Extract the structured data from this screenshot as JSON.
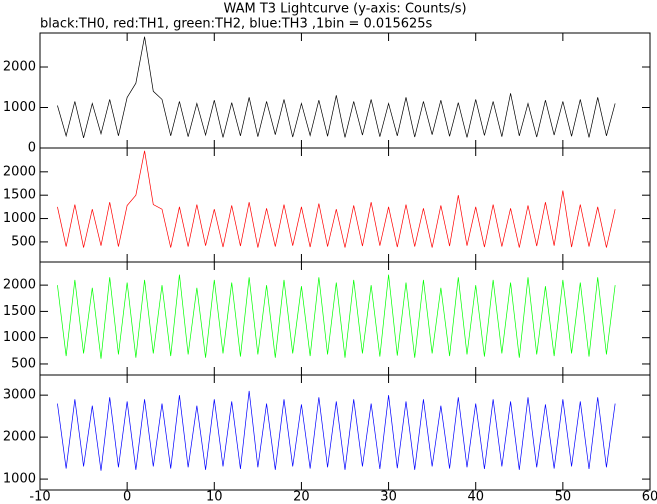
{
  "title": "WAM T3 Lightcurve (y-axis: Counts/s)",
  "subtitle": "black:TH0, red:TH1, green:TH2, blue:TH3 ,1bin = 0.015625s",
  "chart_data": [
    {
      "type": "line",
      "color": "#000000",
      "xlim": [
        -10,
        60
      ],
      "ylim": [
        0,
        2840
      ],
      "yticks": [
        0,
        1000,
        2000
      ],
      "x": [
        -8,
        -7,
        -6,
        -5,
        -4,
        -3,
        -2,
        -1,
        0,
        1,
        2,
        3,
        4,
        5,
        6,
        7,
        8,
        9,
        10,
        11,
        12,
        13,
        14,
        15,
        16,
        17,
        18,
        19,
        20,
        21,
        22,
        23,
        24,
        25,
        26,
        27,
        28,
        29,
        30,
        31,
        32,
        33,
        34,
        35,
        36,
        37,
        38,
        39,
        40,
        41,
        42,
        43,
        44,
        45,
        46,
        47,
        48,
        49,
        50,
        51,
        52,
        53,
        54,
        55,
        56
      ],
      "values": [
        1050,
        300,
        1150,
        250,
        1100,
        350,
        1200,
        300,
        1250,
        1600,
        2750,
        1400,
        1200,
        300,
        1150,
        280,
        1100,
        320,
        1180,
        260,
        1120,
        300,
        1250,
        280,
        1150,
        330,
        1200,
        270,
        1100,
        310,
        1180,
        290,
        1300,
        260,
        1150,
        320,
        1200,
        280,
        1100,
        300,
        1250,
        270,
        1150,
        330,
        1180,
        290,
        1120,
        260,
        1200,
        310,
        1150,
        280,
        1350,
        300,
        1100,
        270,
        1180,
        320,
        1150,
        290,
        1200,
        260,
        1250,
        300,
        1100
      ]
    },
    {
      "type": "line",
      "color": "#ff0000",
      "xlim": [
        -10,
        60
      ],
      "ylim": [
        70,
        2510
      ],
      "yticks": [
        500,
        1000,
        1500,
        2000
      ],
      "x": [
        -8,
        -7,
        -6,
        -5,
        -4,
        -3,
        -2,
        -1,
        0,
        1,
        2,
        3,
        4,
        5,
        6,
        7,
        8,
        9,
        10,
        11,
        12,
        13,
        14,
        15,
        16,
        17,
        18,
        19,
        20,
        21,
        22,
        23,
        24,
        25,
        26,
        27,
        28,
        29,
        30,
        31,
        32,
        33,
        34,
        35,
        36,
        37,
        38,
        39,
        40,
        41,
        42,
        43,
        44,
        45,
        46,
        47,
        48,
        49,
        50,
        51,
        52,
        53,
        54,
        55,
        56
      ],
      "values": [
        1250,
        400,
        1300,
        380,
        1200,
        420,
        1350,
        400,
        1280,
        1500,
        2450,
        1300,
        1200,
        380,
        1250,
        400,
        1300,
        420,
        1200,
        390,
        1280,
        410,
        1350,
        380,
        1220,
        400,
        1300,
        420,
        1250,
        390,
        1320,
        400,
        1200,
        380,
        1280,
        410,
        1350,
        420,
        1250,
        390,
        1300,
        400,
        1220,
        380,
        1280,
        410,
        1500,
        420,
        1250,
        390,
        1300,
        400,
        1220,
        380,
        1280,
        410,
        1350,
        420,
        1600,
        390,
        1300,
        400,
        1250,
        380,
        1200
      ]
    },
    {
      "type": "line",
      "color": "#00ff00",
      "xlim": [
        -10,
        60
      ],
      "ylim": [
        290,
        2440
      ],
      "yticks": [
        500,
        1000,
        1500,
        2000
      ],
      "x": [
        -8,
        -7,
        -6,
        -5,
        -4,
        -3,
        -2,
        -1,
        0,
        1,
        2,
        3,
        4,
        5,
        6,
        7,
        8,
        9,
        10,
        11,
        12,
        13,
        14,
        15,
        16,
        17,
        18,
        19,
        20,
        21,
        22,
        23,
        24,
        25,
        26,
        27,
        28,
        29,
        30,
        31,
        32,
        33,
        34,
        35,
        36,
        37,
        38,
        39,
        40,
        41,
        42,
        43,
        44,
        45,
        46,
        47,
        48,
        49,
        50,
        51,
        52,
        53,
        54,
        55,
        56
      ],
      "values": [
        2000,
        650,
        2100,
        700,
        1950,
        600,
        2150,
        680,
        2050,
        620,
        2100,
        700,
        2000,
        650,
        2200,
        680,
        1950,
        620,
        2100,
        700,
        2050,
        640,
        2150,
        680,
        2000,
        620,
        2100,
        700,
        1980,
        650,
        2150,
        680,
        2050,
        620,
        2100,
        700,
        2000,
        640,
        2200,
        660,
        2050,
        620,
        2100,
        700,
        1950,
        650,
        2150,
        680,
        2000,
        640,
        2100,
        700,
        2050,
        620,
        2150,
        680,
        1980,
        650,
        2100,
        700,
        2050,
        640,
        2150,
        680,
        2000
      ]
    },
    {
      "type": "line",
      "color": "#0000ff",
      "xlim": [
        -10,
        60
      ],
      "ylim": [
        740,
        3480
      ],
      "yticks": [
        1000,
        2000,
        3000
      ],
      "xticks": [
        -10,
        0,
        10,
        20,
        30,
        40,
        50,
        60
      ],
      "x": [
        -8,
        -7,
        -6,
        -5,
        -4,
        -3,
        -2,
        -1,
        0,
        1,
        2,
        3,
        4,
        5,
        6,
        7,
        8,
        9,
        10,
        11,
        12,
        13,
        14,
        15,
        16,
        17,
        18,
        19,
        20,
        21,
        22,
        23,
        24,
        25,
        26,
        27,
        28,
        29,
        30,
        31,
        32,
        33,
        34,
        35,
        36,
        37,
        38,
        39,
        40,
        41,
        42,
        43,
        44,
        45,
        46,
        47,
        48,
        49,
        50,
        51,
        52,
        53,
        54,
        55,
        56
      ],
      "values": [
        2800,
        1250,
        2900,
        1300,
        2750,
        1200,
        2950,
        1280,
        2850,
        1220,
        2900,
        1300,
        2800,
        1250,
        3000,
        1280,
        2750,
        1220,
        2900,
        1300,
        2850,
        1240,
        3100,
        1280,
        2800,
        1220,
        2900,
        1300,
        2780,
        1250,
        2950,
        1280,
        2850,
        1220,
        2900,
        1300,
        2800,
        1240,
        3000,
        1260,
        2850,
        1220,
        2900,
        1300,
        2750,
        1250,
        2950,
        1280,
        2800,
        1240,
        2900,
        1300,
        2850,
        1220,
        2950,
        1280,
        2780,
        1250,
        2900,
        1300,
        2850,
        1240,
        2950,
        1280,
        2800
      ]
    }
  ]
}
